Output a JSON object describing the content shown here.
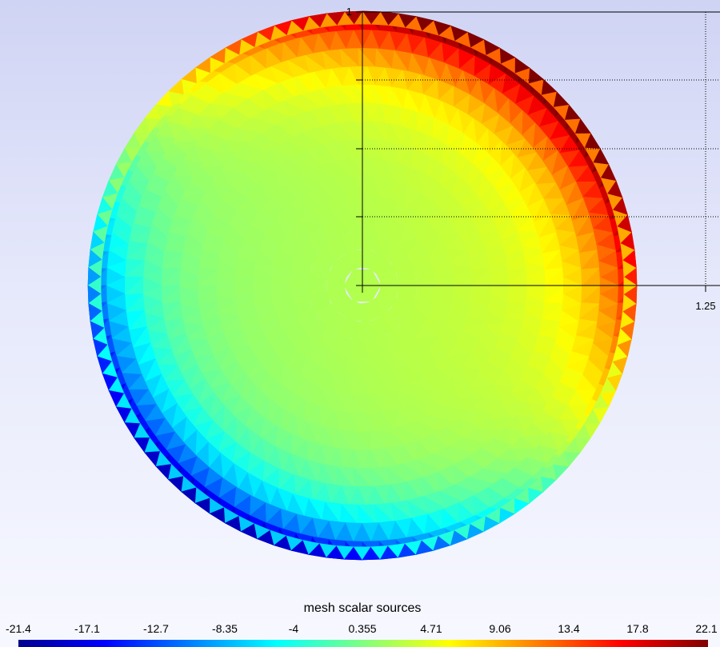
{
  "chart_data": {
    "type": "heatmap",
    "title": "",
    "mesh": {
      "shape": "disk",
      "boundary_elements": 96,
      "field_range": [
        -21.4,
        22.1
      ]
    },
    "axes": {
      "x_tick_labels": [
        "1.25"
      ],
      "y_tick_labels": [
        "1"
      ],
      "grid": "dotted"
    },
    "colorbar": {
      "title": "mesh scalar sources",
      "colormap": "jet",
      "min": -21.4,
      "max": 22.1,
      "tick_labels": [
        "-21.4",
        "-17.1",
        "-12.7",
        "-8.35",
        "-4",
        "0.355",
        "4.71",
        "9.06",
        "13.4",
        "17.8",
        "22.1"
      ],
      "colors": [
        "#00008f",
        "#0000ff",
        "#0080ff",
        "#00ffff",
        "#80ff80",
        "#ffff00",
        "#ff8000",
        "#ff0000",
        "#800000"
      ]
    }
  }
}
